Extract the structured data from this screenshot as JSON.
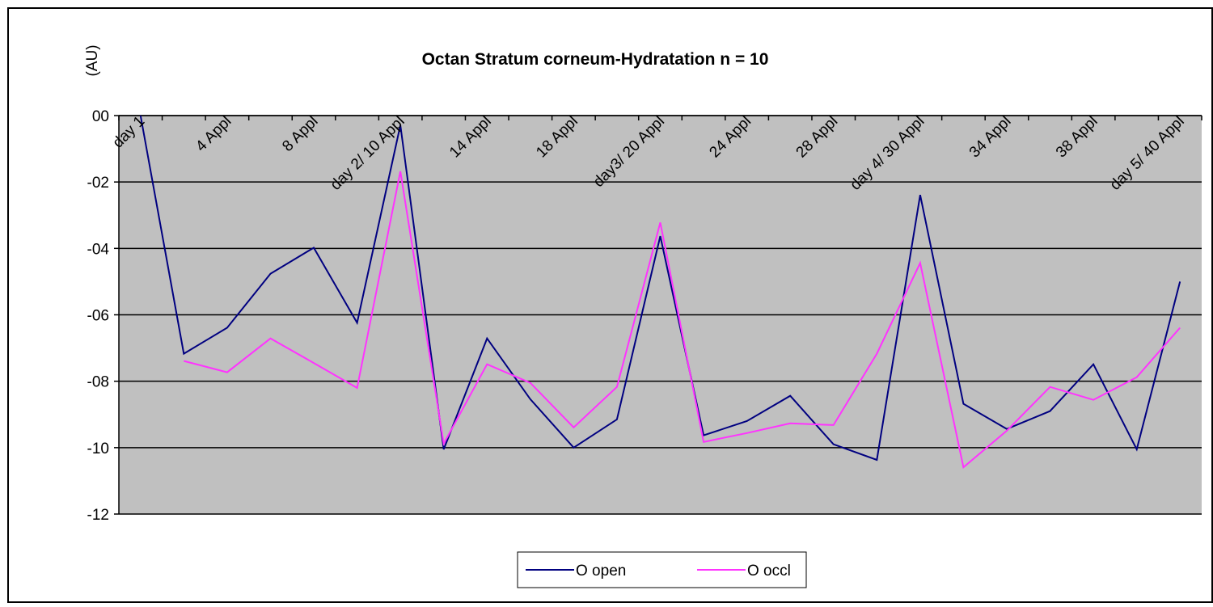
{
  "chart_data": {
    "type": "line",
    "title": "Octan Stratum corneum-Hydratation n = 10",
    "ylabel": "(AU)",
    "categories": [
      "day 1",
      null,
      "4 Appl",
      null,
      "8 Appl",
      null,
      "day 2/ 10 Appl",
      null,
      "14 Appl",
      null,
      "18 Appl",
      null,
      "day3/ 20 Appl",
      null,
      "24 Appl",
      null,
      "28 Appl",
      null,
      "day 4/ 30 Appl",
      null,
      "34 Appl",
      null,
      "38 Appl",
      null,
      "day 5/ 40 Appl"
    ],
    "series": [
      {
        "name": "O open",
        "color": "#000080",
        "values": [
          0,
          -7.17,
          -6.39,
          -4.76,
          -3.98,
          -6.24,
          -0.29,
          -10.05,
          -6.71,
          -8.54,
          -10.0,
          -9.15,
          -3.63,
          -9.63,
          -9.2,
          -8.44,
          -9.9,
          -10.37,
          -2.39,
          -8.68,
          -9.44,
          -8.9,
          -7.49,
          -10.05,
          -5.0
        ]
      },
      {
        "name": "O occl",
        "color": "#ff33ff",
        "values": [
          null,
          -7.39,
          -7.73,
          -6.71,
          -7.45,
          -8.2,
          -1.68,
          -9.88,
          -7.49,
          -8.05,
          -9.39,
          -8.17,
          -3.22,
          -9.83,
          -9.56,
          -9.27,
          -9.32,
          -7.17,
          -4.44,
          -10.59,
          -9.49,
          -8.17,
          -8.56,
          -7.88,
          -6.39
        ]
      }
    ],
    "ylim": [
      -12,
      0
    ],
    "yticks": [
      {
        "value": 0,
        "label": "00"
      },
      {
        "value": -2,
        "label": "-02"
      },
      {
        "value": -4,
        "label": "-04"
      },
      {
        "value": -6,
        "label": "-06"
      },
      {
        "value": -8,
        "label": "-08"
      },
      -10,
      -12
    ],
    "grid": true,
    "legend": "bottom"
  }
}
